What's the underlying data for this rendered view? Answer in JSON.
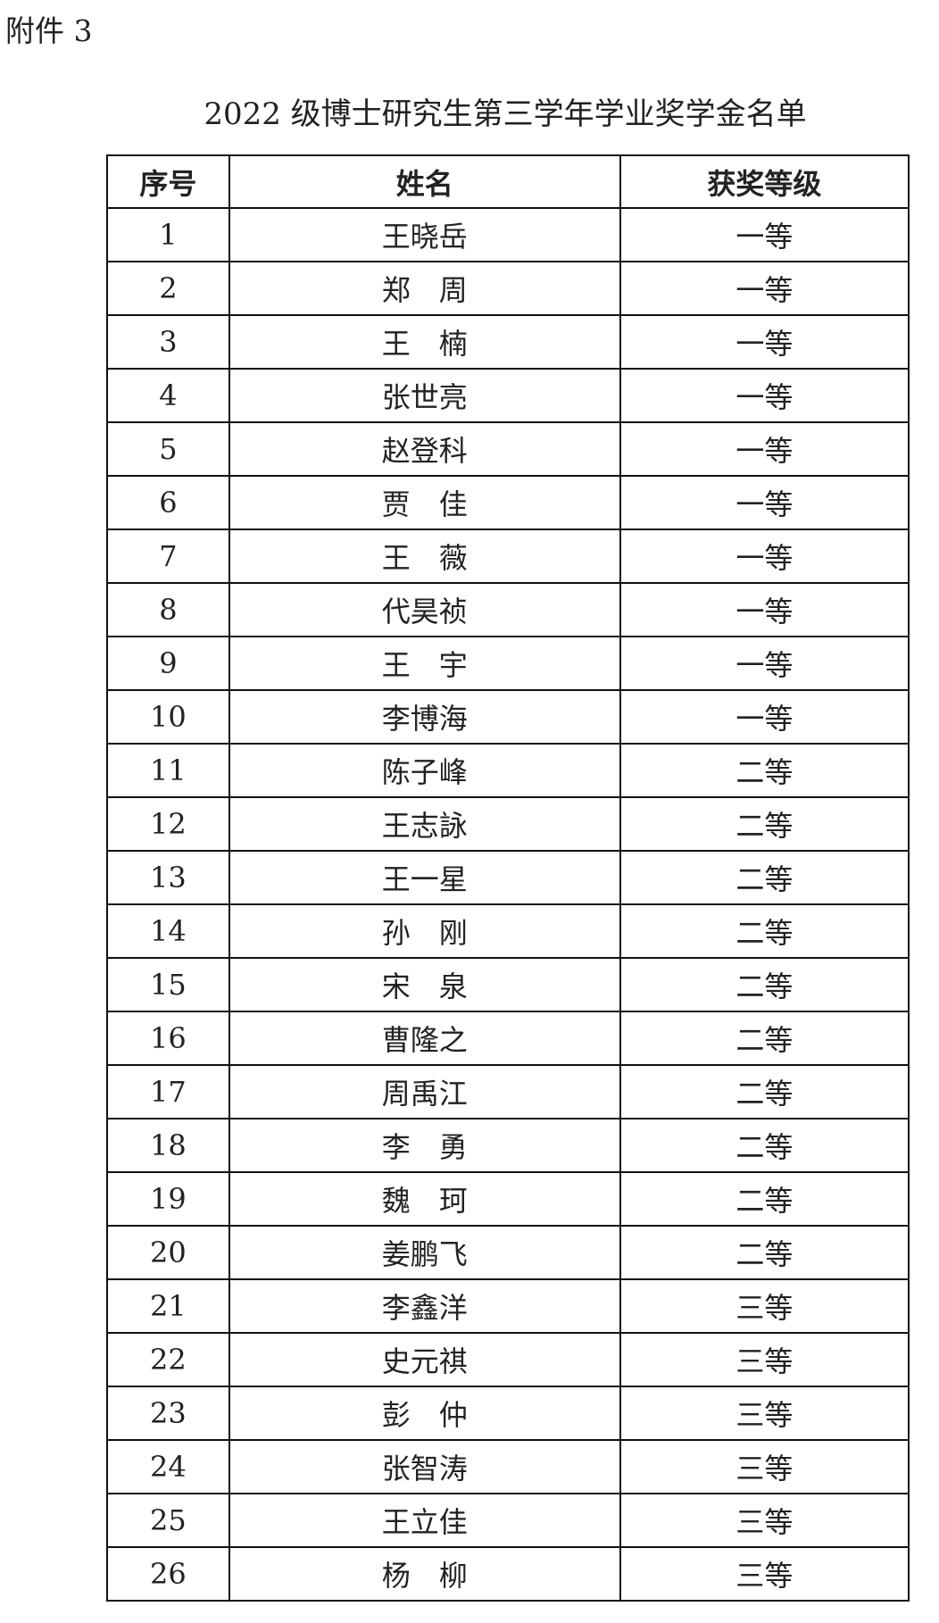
{
  "attachment_label": "附件 3",
  "title": "2022 级博士研究生第三学年学业奖学金名单",
  "table": {
    "headers": [
      "序号",
      "姓名",
      "获奖等级"
    ],
    "rows": [
      [
        "1",
        "王晓岳",
        "一等"
      ],
      [
        "2",
        "郑　周",
        "一等"
      ],
      [
        "3",
        "王　楠",
        "一等"
      ],
      [
        "4",
        "张世亮",
        "一等"
      ],
      [
        "5",
        "赵登科",
        "一等"
      ],
      [
        "6",
        "贾　佳",
        "一等"
      ],
      [
        "7",
        "王　薇",
        "一等"
      ],
      [
        "8",
        "代昊祯",
        "一等"
      ],
      [
        "9",
        "王　宇",
        "一等"
      ],
      [
        "10",
        "李博海",
        "一等"
      ],
      [
        "11",
        "陈子峰",
        "二等"
      ],
      [
        "12",
        "王志詠",
        "二等"
      ],
      [
        "13",
        "王一星",
        "二等"
      ],
      [
        "14",
        "孙　刚",
        "二等"
      ],
      [
        "15",
        "宋　泉",
        "二等"
      ],
      [
        "16",
        "曹隆之",
        "二等"
      ],
      [
        "17",
        "周禹江",
        "二等"
      ],
      [
        "18",
        "李　勇",
        "二等"
      ],
      [
        "19",
        "魏　珂",
        "二等"
      ],
      [
        "20",
        "姜鹏飞",
        "二等"
      ],
      [
        "21",
        "李鑫洋",
        "三等"
      ],
      [
        "22",
        "史元祺",
        "三等"
      ],
      [
        "23",
        "彭　仲",
        "三等"
      ],
      [
        "24",
        "张智涛",
        "三等"
      ],
      [
        "25",
        "王立佳",
        "三等"
      ],
      [
        "26",
        "杨　柳",
        "三等"
      ]
    ]
  }
}
